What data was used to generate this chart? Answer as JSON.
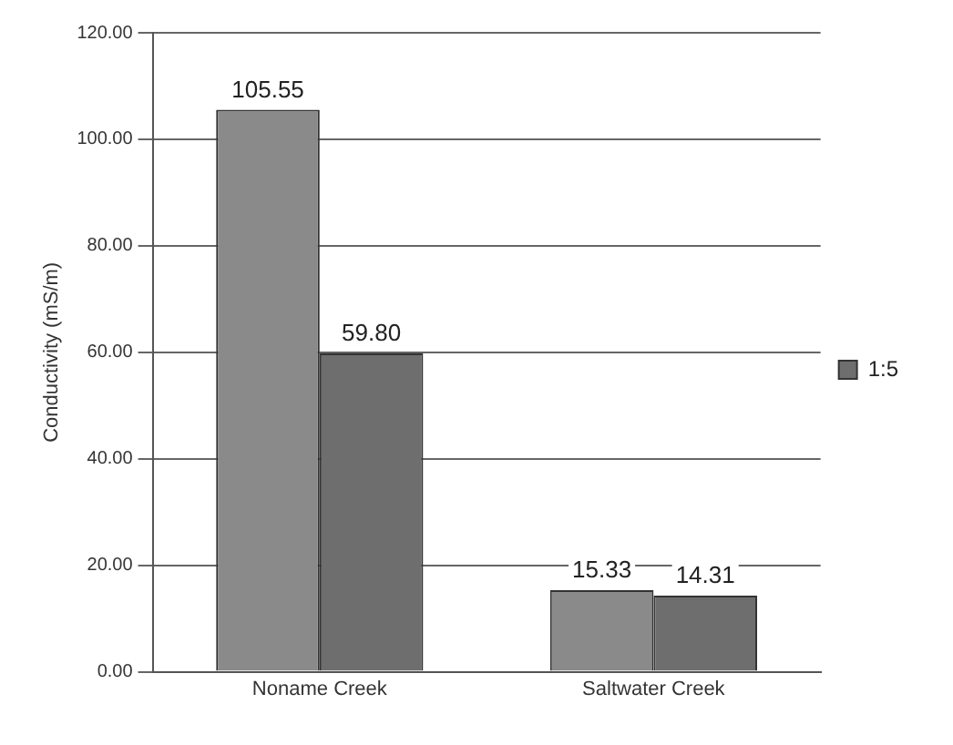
{
  "chart_data": {
    "type": "bar",
    "ylabel": "Conductivity (mS/m)",
    "categories": [
      "Noname Creek",
      "Saltwater Creek"
    ],
    "series": [
      {
        "color": "#8a8a8a",
        "values": [
          105.55,
          15.33
        ],
        "value_labels": [
          "105.55",
          "15.33"
        ]
      },
      {
        "name": "1:5",
        "color": "#6e6e6e",
        "values": [
          59.8,
          14.31
        ],
        "value_labels": [
          "59.80",
          "14.31"
        ]
      }
    ],
    "ylim": [
      0,
      120
    ],
    "yticks": [
      {
        "value": 0,
        "label": "0.00"
      },
      {
        "value": 20,
        "label": "20.00"
      },
      {
        "value": 40,
        "label": "40.00"
      },
      {
        "value": 60,
        "label": "60.00"
      },
      {
        "value": 80,
        "label": "80.00"
      },
      {
        "value": 100,
        "label": "100.00"
      },
      {
        "value": 120,
        "label": "120.00"
      }
    ],
    "grid": "y",
    "legend": "right"
  }
}
